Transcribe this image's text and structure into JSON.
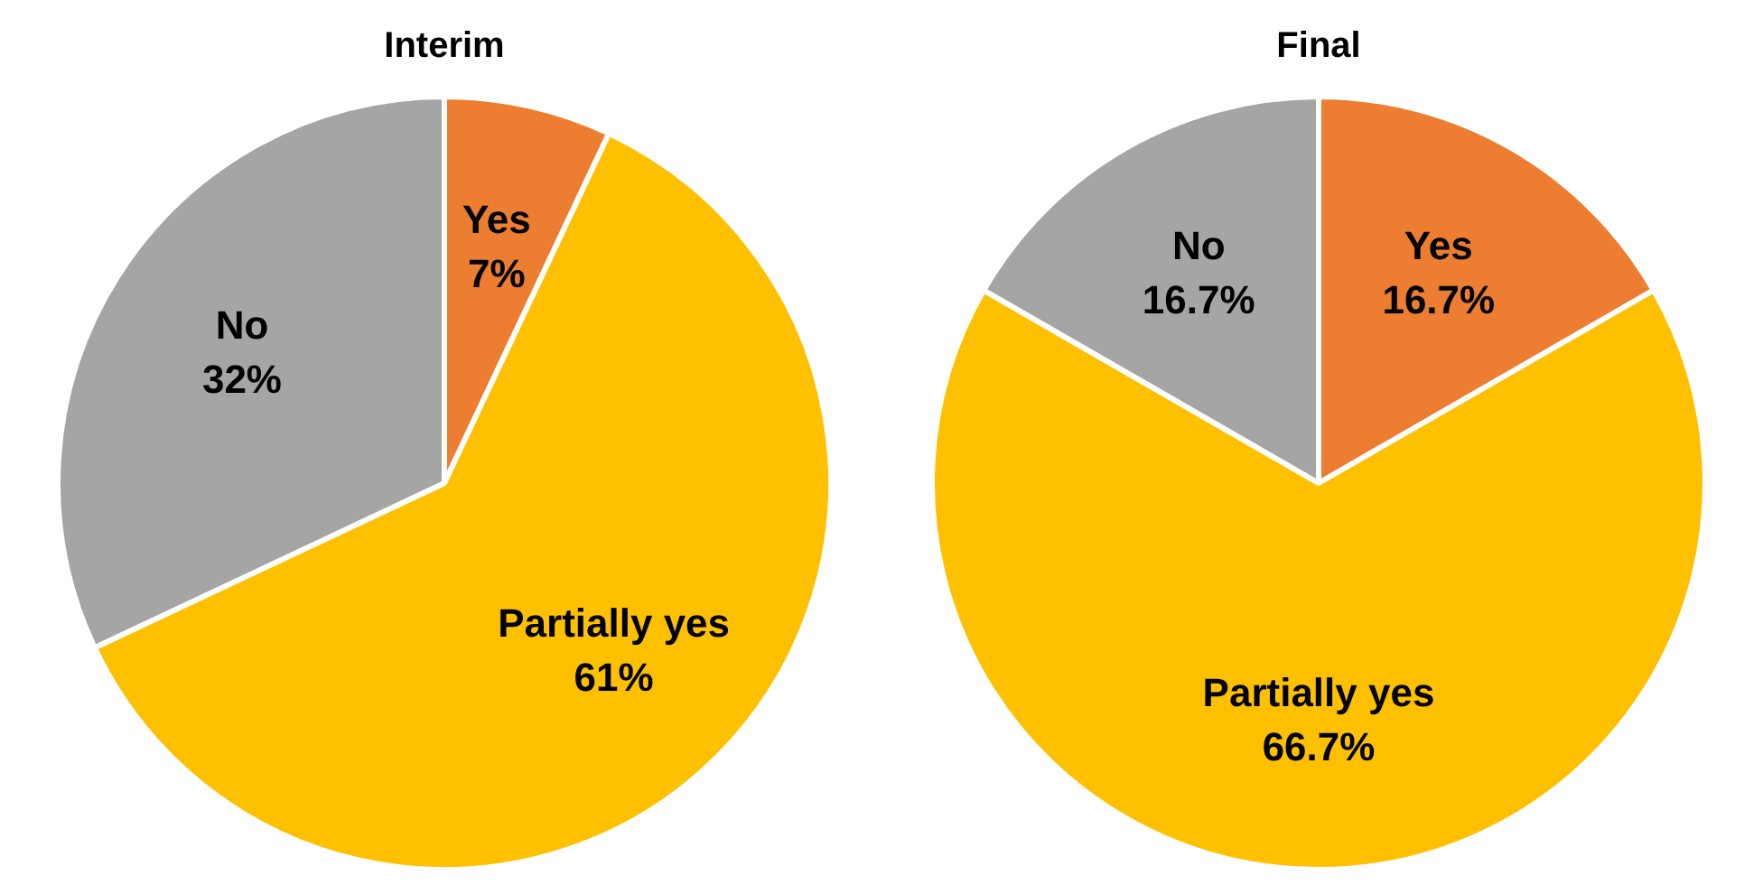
{
  "chart_data": [
    {
      "type": "pie",
      "title": "Interim",
      "categories": [
        "Yes",
        "Partially yes",
        "No"
      ],
      "values": [
        7,
        61,
        32
      ],
      "value_labels": [
        "7%",
        "61%",
        "32%"
      ],
      "colors": [
        "#ed7d31",
        "#ffc000",
        "#a5a5a5"
      ]
    },
    {
      "type": "pie",
      "title": "Final",
      "categories": [
        "Yes",
        "Partially yes",
        "No"
      ],
      "values": [
        16.7,
        66.7,
        16.7
      ],
      "value_labels": [
        "16.7%",
        "66.7%",
        "16.7%"
      ],
      "colors": [
        "#ed7d31",
        "#ffc000",
        "#a5a5a5"
      ]
    }
  ]
}
